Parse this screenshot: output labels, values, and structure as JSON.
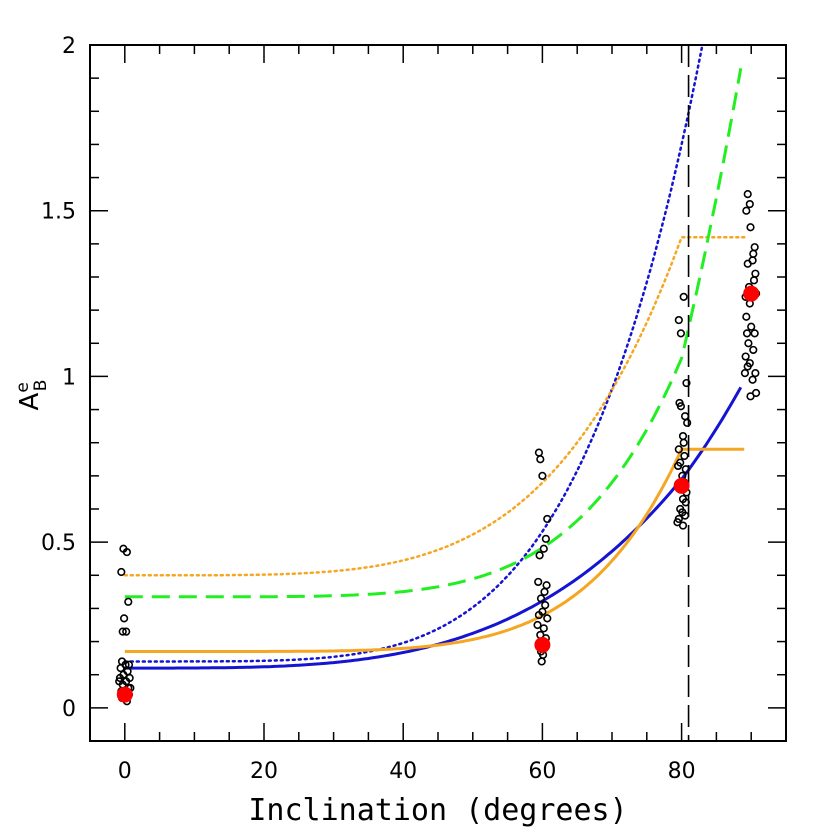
{
  "chart_data": {
    "type": "scatter",
    "xlabel": "Inclination (degrees)",
    "ylabel": {
      "main": "A",
      "sup": "e",
      "sub": "B"
    },
    "xlim": [
      -5,
      95
    ],
    "ylim": [
      -0.1,
      2.0
    ],
    "xticks": [
      0,
      20,
      40,
      60,
      80
    ],
    "yticks": [
      0,
      0.5,
      1,
      1.5,
      2
    ],
    "ytick_labels": [
      "0",
      "0.5",
      "1",
      "1.5",
      "2"
    ],
    "vline_x": 81,
    "colors": {
      "points": "#000000",
      "means": "#ff0000",
      "blue": "#1414d2",
      "green": "#22ee22",
      "orange": "#f5a623"
    },
    "scatter_points": [
      [
        -0.5,
        0.41
      ],
      [
        -0.2,
        0.48
      ],
      [
        0.3,
        0.47
      ],
      [
        -0.1,
        0.27
      ],
      [
        -0.3,
        0.23
      ],
      [
        0.2,
        0.23
      ],
      [
        0.5,
        0.32
      ],
      [
        -0.4,
        0.14
      ],
      [
        0.1,
        0.13
      ],
      [
        0.6,
        0.13
      ],
      [
        -0.6,
        0.12
      ],
      [
        0.4,
        0.11
      ],
      [
        -0.2,
        0.1
      ],
      [
        0.7,
        0.09
      ],
      [
        -0.7,
        0.09
      ],
      [
        0.2,
        0.08
      ],
      [
        -0.3,
        0.07
      ],
      [
        0.5,
        0.06
      ],
      [
        -0.5,
        0.05
      ],
      [
        0.0,
        0.05
      ],
      [
        0.6,
        0.04
      ],
      [
        -0.4,
        0.03
      ],
      [
        0.3,
        0.02
      ],
      [
        0.8,
        0.06
      ],
      [
        -0.8,
        0.08
      ],
      [
        59.5,
        0.77
      ],
      [
        59.7,
        0.75
      ],
      [
        60.0,
        0.7
      ],
      [
        60.7,
        0.57
      ],
      [
        60.5,
        0.51
      ],
      [
        60.2,
        0.48
      ],
      [
        59.6,
        0.46
      ],
      [
        59.4,
        0.38
      ],
      [
        60.6,
        0.37
      ],
      [
        60.3,
        0.35
      ],
      [
        59.8,
        0.33
      ],
      [
        60.4,
        0.31
      ],
      [
        60.0,
        0.29
      ],
      [
        59.5,
        0.28
      ],
      [
        60.7,
        0.27
      ],
      [
        59.3,
        0.25
      ],
      [
        60.2,
        0.24
      ],
      [
        59.7,
        0.22
      ],
      [
        60.5,
        0.21
      ],
      [
        59.9,
        0.2
      ],
      [
        60.3,
        0.18
      ],
      [
        59.8,
        0.17
      ],
      [
        60.1,
        0.16
      ],
      [
        59.9,
        0.14
      ],
      [
        80.3,
        1.24
      ],
      [
        79.6,
        1.17
      ],
      [
        79.9,
        1.13
      ],
      [
        80.7,
        0.98
      ],
      [
        79.7,
        0.92
      ],
      [
        79.9,
        0.91
      ],
      [
        80.5,
        0.88
      ],
      [
        80.8,
        0.86
      ],
      [
        80.2,
        0.82
      ],
      [
        80.3,
        0.8
      ],
      [
        79.6,
        0.78
      ],
      [
        80.4,
        0.76
      ],
      [
        79.8,
        0.74
      ],
      [
        80.6,
        0.72
      ],
      [
        80.1,
        0.7
      ],
      [
        79.5,
        0.73
      ],
      [
        80.4,
        0.68
      ],
      [
        79.9,
        0.66
      ],
      [
        80.7,
        0.65
      ],
      [
        80.2,
        0.63
      ],
      [
        80.6,
        0.62
      ],
      [
        79.8,
        0.6
      ],
      [
        80.1,
        0.59
      ],
      [
        80.5,
        0.58
      ],
      [
        79.6,
        0.57
      ],
      [
        79.4,
        0.56
      ],
      [
        80.2,
        0.55
      ],
      [
        89.5,
        1.55
      ],
      [
        89.8,
        1.52
      ],
      [
        89.3,
        1.5
      ],
      [
        89.9,
        1.45
      ],
      [
        90.5,
        1.39
      ],
      [
        90.3,
        1.37
      ],
      [
        90.2,
        1.35
      ],
      [
        89.5,
        1.34
      ],
      [
        90.6,
        1.31
      ],
      [
        90.4,
        1.29
      ],
      [
        89.7,
        1.27
      ],
      [
        90.7,
        1.25
      ],
      [
        89.2,
        1.24
      ],
      [
        89.8,
        1.22
      ],
      [
        89.3,
        1.18
      ],
      [
        90.0,
        1.15
      ],
      [
        89.4,
        1.13
      ],
      [
        90.5,
        1.13
      ],
      [
        89.6,
        1.1
      ],
      [
        90.3,
        1.08
      ],
      [
        89.2,
        1.06
      ],
      [
        89.8,
        1.04
      ],
      [
        89.5,
        1.03
      ],
      [
        89.1,
        1.01
      ],
      [
        90.6,
        1.01
      ],
      [
        90.2,
        0.99
      ],
      [
        90.7,
        0.95
      ],
      [
        89.9,
        0.94
      ]
    ],
    "means": [
      [
        0,
        0.04
      ],
      [
        60,
        0.19
      ],
      [
        80,
        0.67
      ],
      [
        90,
        1.25
      ]
    ]
  }
}
